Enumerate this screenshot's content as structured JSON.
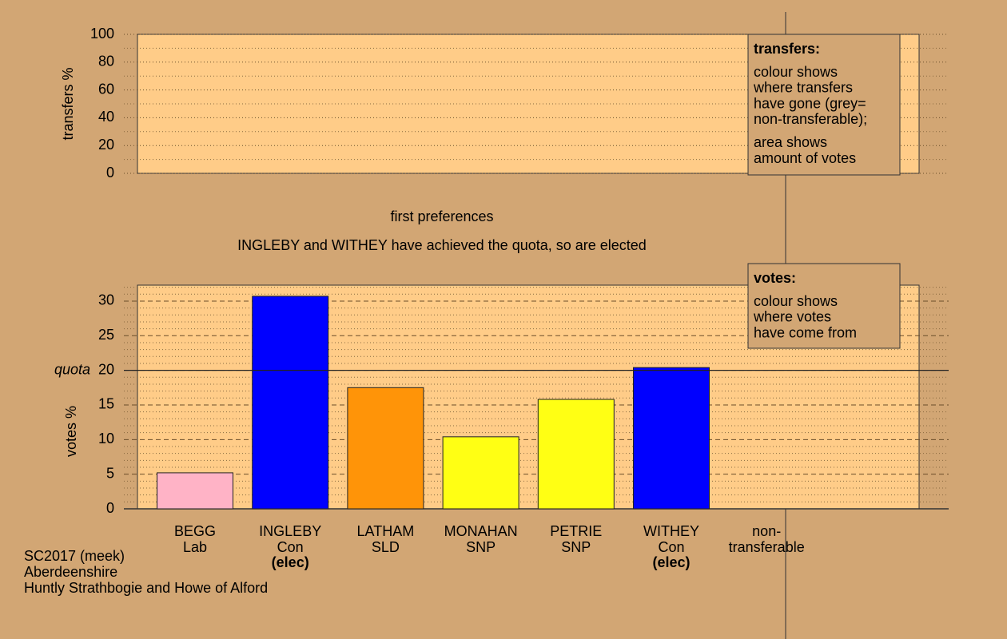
{
  "chart_data": [
    {
      "type": "bar",
      "ylabel": "transfers %",
      "ylim": [
        0,
        100
      ],
      "yticks": [
        0,
        20,
        40,
        60,
        80,
        100
      ],
      "minor_yticks": [
        10,
        30,
        50,
        70,
        90
      ],
      "legend_title": "transfers:",
      "legend_lines": [
        [
          "colour shows",
          "where transfers",
          "have gone (grey=",
          "non-transferable);"
        ],
        [
          "area shows",
          "amount of votes"
        ]
      ]
    },
    {
      "type": "bar",
      "title": "first preferences",
      "subtitle": "INGLEBY and WITHEY have achieved the quota, so are elected",
      "ylabel": "votes %",
      "ylim": [
        0,
        32.3
      ],
      "yticks": [
        0,
        5,
        10,
        15,
        20,
        25,
        30
      ],
      "minor_yticks": [
        1,
        2,
        3,
        4,
        6,
        7,
        8,
        9,
        11,
        12,
        13,
        14,
        16,
        17,
        18,
        19,
        21,
        22,
        23,
        24,
        26,
        27,
        28,
        29,
        31,
        32
      ],
      "quota": {
        "value": 20,
        "label": "quota"
      },
      "categories": [
        "BEGG",
        "INGLEBY",
        "LATHAM",
        "MONAHAN",
        "PETRIE",
        "WITHEY",
        "non-"
      ],
      "sublabels": [
        "Lab",
        "Con",
        "SLD",
        "SNP",
        "SNP",
        "Con",
        "transferable"
      ],
      "status": [
        null,
        "(elec)",
        null,
        null,
        null,
        "(elec)",
        null
      ],
      "values": [
        5.2,
        30.7,
        17.5,
        10.4,
        15.8,
        20.4,
        null
      ],
      "colors": [
        "#ffb3c6",
        "#0000ff",
        "#ff9408",
        "#ffff14",
        "#ffff14",
        "#0000ff",
        null
      ],
      "legend_title": "votes:",
      "legend_lines": [
        [
          "colour shows",
          "where votes",
          "have come from"
        ]
      ]
    }
  ],
  "footer": [
    "SC2017 (meek)",
    "Aberdeenshire",
    "Huntly Strathbogie and Howe of Alford"
  ]
}
